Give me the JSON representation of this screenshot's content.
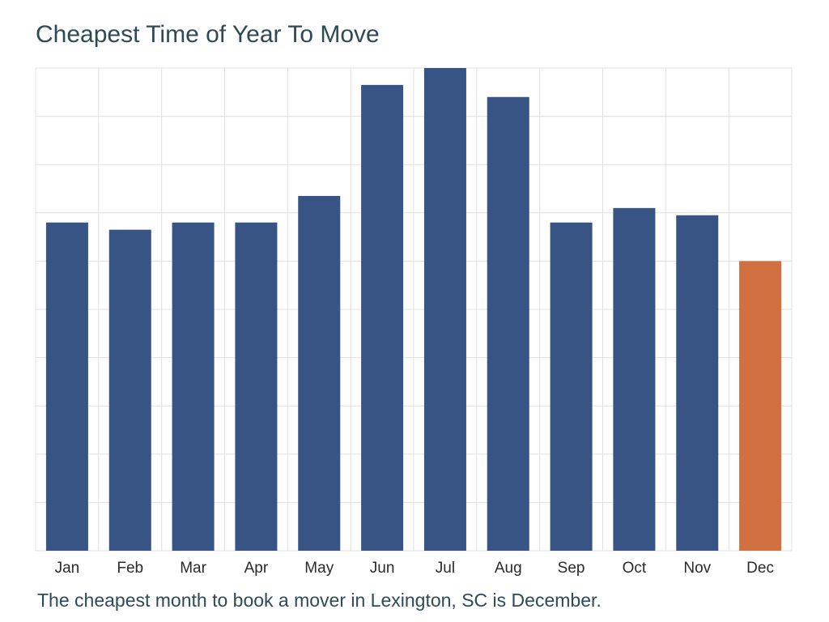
{
  "chart_data": {
    "type": "bar",
    "title": "Cheapest Time of Year To Move",
    "caption": "The cheapest month to book a mover in Lexington, SC is December.",
    "categories": [
      "Jan",
      "Feb",
      "Mar",
      "Apr",
      "May",
      "Jun",
      "Jul",
      "Aug",
      "Sep",
      "Oct",
      "Nov",
      "Dec"
    ],
    "values": [
      68,
      66.5,
      68,
      68,
      73.5,
      96.5,
      100,
      94,
      68,
      71,
      69.5,
      60
    ],
    "ylim": [
      0,
      100
    ],
    "y_gridlines": 10,
    "grid": true,
    "legend": "none",
    "xlabel": "",
    "ylabel": "",
    "highlight_category": "Dec",
    "colors": {
      "bar": "#375484",
      "highlight": "#d07040",
      "grid": "#e0e0e0",
      "text": "#2d4a57"
    }
  }
}
